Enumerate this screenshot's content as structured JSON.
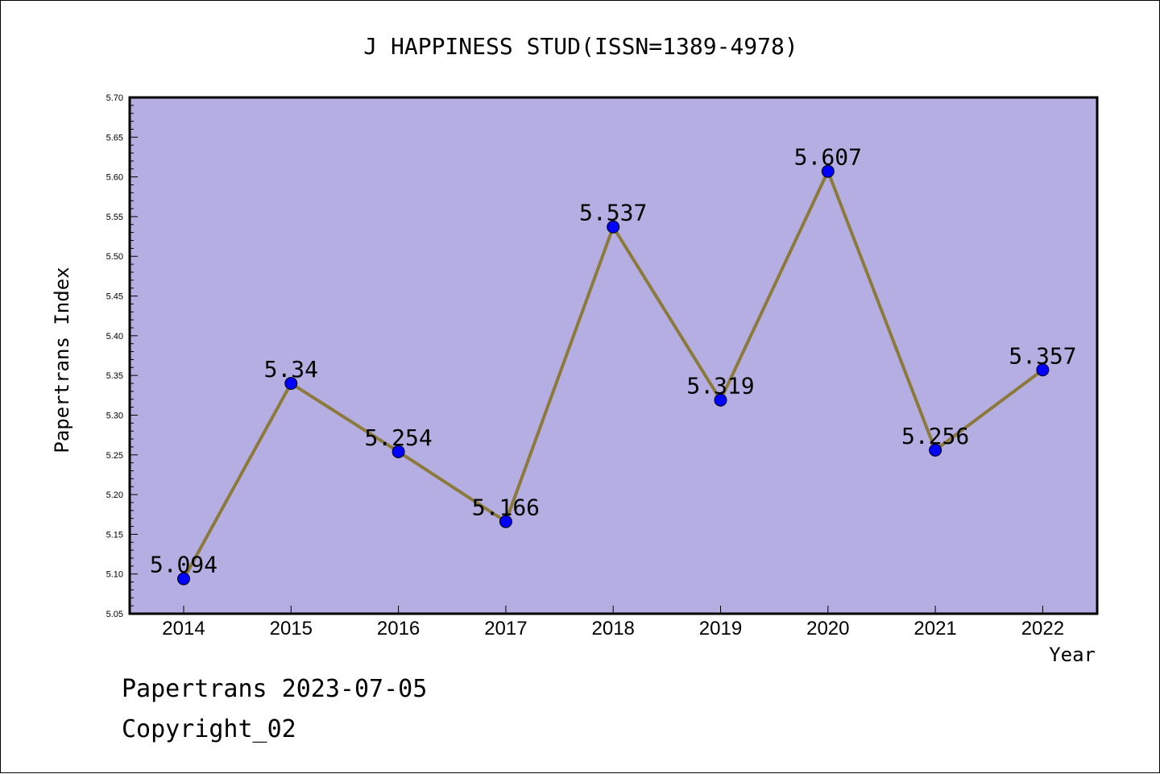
{
  "footer": {
    "line1": "Papertrans 2023-07-05",
    "line2": "Copyright_02"
  },
  "colors": {
    "plot_background": "#B5AEE2",
    "line": "#8C7A3C",
    "marker": "#0000FF",
    "axis": "#000000"
  },
  "chart_data": {
    "type": "line",
    "title": "J HAPPINESS STUD(ISSN=1389-4978)",
    "xlabel": "Year",
    "ylabel": "Papertrans Index",
    "categories": [
      "2014",
      "2015",
      "2016",
      "2017",
      "2018",
      "2019",
      "2020",
      "2021",
      "2022"
    ],
    "series": [
      {
        "values": [
          5.094,
          5.34,
          5.254,
          5.166,
          5.537,
          5.319,
          5.607,
          5.256,
          5.357
        ],
        "data_labels": [
          "5.094",
          "5.34",
          "5.254",
          "5.166",
          "5.537",
          "5.319",
          "5.607",
          "5.256",
          "5.357"
        ]
      }
    ],
    "ylim": [
      5.05,
      5.7
    ],
    "yticks": [
      "5.05",
      "5.10",
      "5.15",
      "5.20",
      "5.25",
      "5.30",
      "5.35",
      "5.40",
      "5.45",
      "5.50",
      "5.55",
      "5.60",
      "5.65",
      "5.70"
    ],
    "grid": false,
    "legend": "none"
  }
}
